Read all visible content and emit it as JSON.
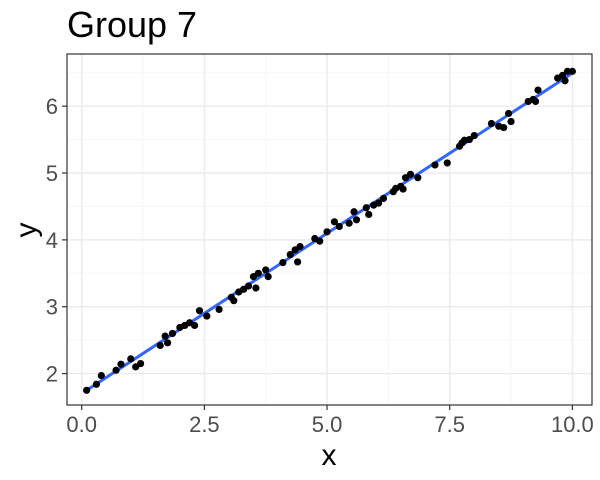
{
  "chart_data": {
    "type": "scatter",
    "title": "Group 7",
    "xlabel": "x",
    "ylabel": "y",
    "xlim": [
      -0.3,
      10.4
    ],
    "ylim": [
      1.53,
      6.78
    ],
    "x_ticks": [
      0.0,
      2.5,
      5.0,
      7.5,
      10.0
    ],
    "x_tick_labels": [
      "0.0",
      "2.5",
      "5.0",
      "7.5",
      "10.0"
    ],
    "y_ticks": [
      2,
      3,
      4,
      5,
      6
    ],
    "y_tick_labels": [
      "2",
      "3",
      "4",
      "5",
      "6"
    ],
    "grid": true,
    "colors": {
      "points": "#000000",
      "fit_line": "#3366ff",
      "panel_border": "#333333",
      "grid_major": "#ebebeb",
      "grid_minor": "#f5f5f5",
      "tick_label": "#4d4d4d"
    },
    "fit_line": {
      "x": [
        0.1,
        9.95
      ],
      "y": [
        1.75,
        6.47
      ]
    },
    "points": [
      {
        "x": 0.1,
        "y": 1.75
      },
      {
        "x": 0.3,
        "y": 1.84
      },
      {
        "x": 0.4,
        "y": 1.97
      },
      {
        "x": 0.7,
        "y": 2.05
      },
      {
        "x": 0.8,
        "y": 2.14
      },
      {
        "x": 1.0,
        "y": 2.22
      },
      {
        "x": 1.1,
        "y": 2.1
      },
      {
        "x": 1.2,
        "y": 2.15
      },
      {
        "x": 1.6,
        "y": 2.42
      },
      {
        "x": 1.7,
        "y": 2.56
      },
      {
        "x": 1.75,
        "y": 2.46
      },
      {
        "x": 1.85,
        "y": 2.6
      },
      {
        "x": 2.0,
        "y": 2.69
      },
      {
        "x": 2.1,
        "y": 2.72
      },
      {
        "x": 2.2,
        "y": 2.76
      },
      {
        "x": 2.3,
        "y": 2.72
      },
      {
        "x": 2.4,
        "y": 2.94
      },
      {
        "x": 2.55,
        "y": 2.86
      },
      {
        "x": 2.8,
        "y": 2.96
      },
      {
        "x": 3.05,
        "y": 3.14
      },
      {
        "x": 3.1,
        "y": 3.09
      },
      {
        "x": 3.2,
        "y": 3.22
      },
      {
        "x": 3.3,
        "y": 3.26
      },
      {
        "x": 3.4,
        "y": 3.31
      },
      {
        "x": 3.5,
        "y": 3.45
      },
      {
        "x": 3.55,
        "y": 3.28
      },
      {
        "x": 3.6,
        "y": 3.5
      },
      {
        "x": 3.75,
        "y": 3.55
      },
      {
        "x": 3.8,
        "y": 3.45
      },
      {
        "x": 4.1,
        "y": 3.66
      },
      {
        "x": 4.25,
        "y": 3.78
      },
      {
        "x": 4.35,
        "y": 3.85
      },
      {
        "x": 4.4,
        "y": 3.67
      },
      {
        "x": 4.45,
        "y": 3.9
      },
      {
        "x": 4.75,
        "y": 4.02
      },
      {
        "x": 4.85,
        "y": 3.98
      },
      {
        "x": 5.0,
        "y": 4.12
      },
      {
        "x": 5.15,
        "y": 4.27
      },
      {
        "x": 5.25,
        "y": 4.2
      },
      {
        "x": 5.45,
        "y": 4.25
      },
      {
        "x": 5.55,
        "y": 4.42
      },
      {
        "x": 5.6,
        "y": 4.3
      },
      {
        "x": 5.8,
        "y": 4.48
      },
      {
        "x": 5.85,
        "y": 4.38
      },
      {
        "x": 5.95,
        "y": 4.52
      },
      {
        "x": 6.05,
        "y": 4.55
      },
      {
        "x": 6.15,
        "y": 4.62
      },
      {
        "x": 6.35,
        "y": 4.72
      },
      {
        "x": 6.4,
        "y": 4.77
      },
      {
        "x": 6.5,
        "y": 4.8
      },
      {
        "x": 6.55,
        "y": 4.76
      },
      {
        "x": 6.6,
        "y": 4.93
      },
      {
        "x": 6.7,
        "y": 4.98
      },
      {
        "x": 6.85,
        "y": 4.93
      },
      {
        "x": 7.2,
        "y": 5.12
      },
      {
        "x": 7.45,
        "y": 5.15
      },
      {
        "x": 7.7,
        "y": 5.4
      },
      {
        "x": 7.75,
        "y": 5.45
      },
      {
        "x": 7.8,
        "y": 5.49
      },
      {
        "x": 7.9,
        "y": 5.5
      },
      {
        "x": 8.0,
        "y": 5.56
      },
      {
        "x": 8.35,
        "y": 5.74
      },
      {
        "x": 8.5,
        "y": 5.7
      },
      {
        "x": 8.6,
        "y": 5.68
      },
      {
        "x": 8.7,
        "y": 5.89
      },
      {
        "x": 8.75,
        "y": 5.77
      },
      {
        "x": 9.1,
        "y": 6.07
      },
      {
        "x": 9.2,
        "y": 6.1
      },
      {
        "x": 9.25,
        "y": 6.07
      },
      {
        "x": 9.3,
        "y": 6.24
      },
      {
        "x": 9.7,
        "y": 6.42
      },
      {
        "x": 9.8,
        "y": 6.46
      },
      {
        "x": 9.85,
        "y": 6.38
      },
      {
        "x": 9.9,
        "y": 6.52
      },
      {
        "x": 10.0,
        "y": 6.52
      }
    ]
  }
}
